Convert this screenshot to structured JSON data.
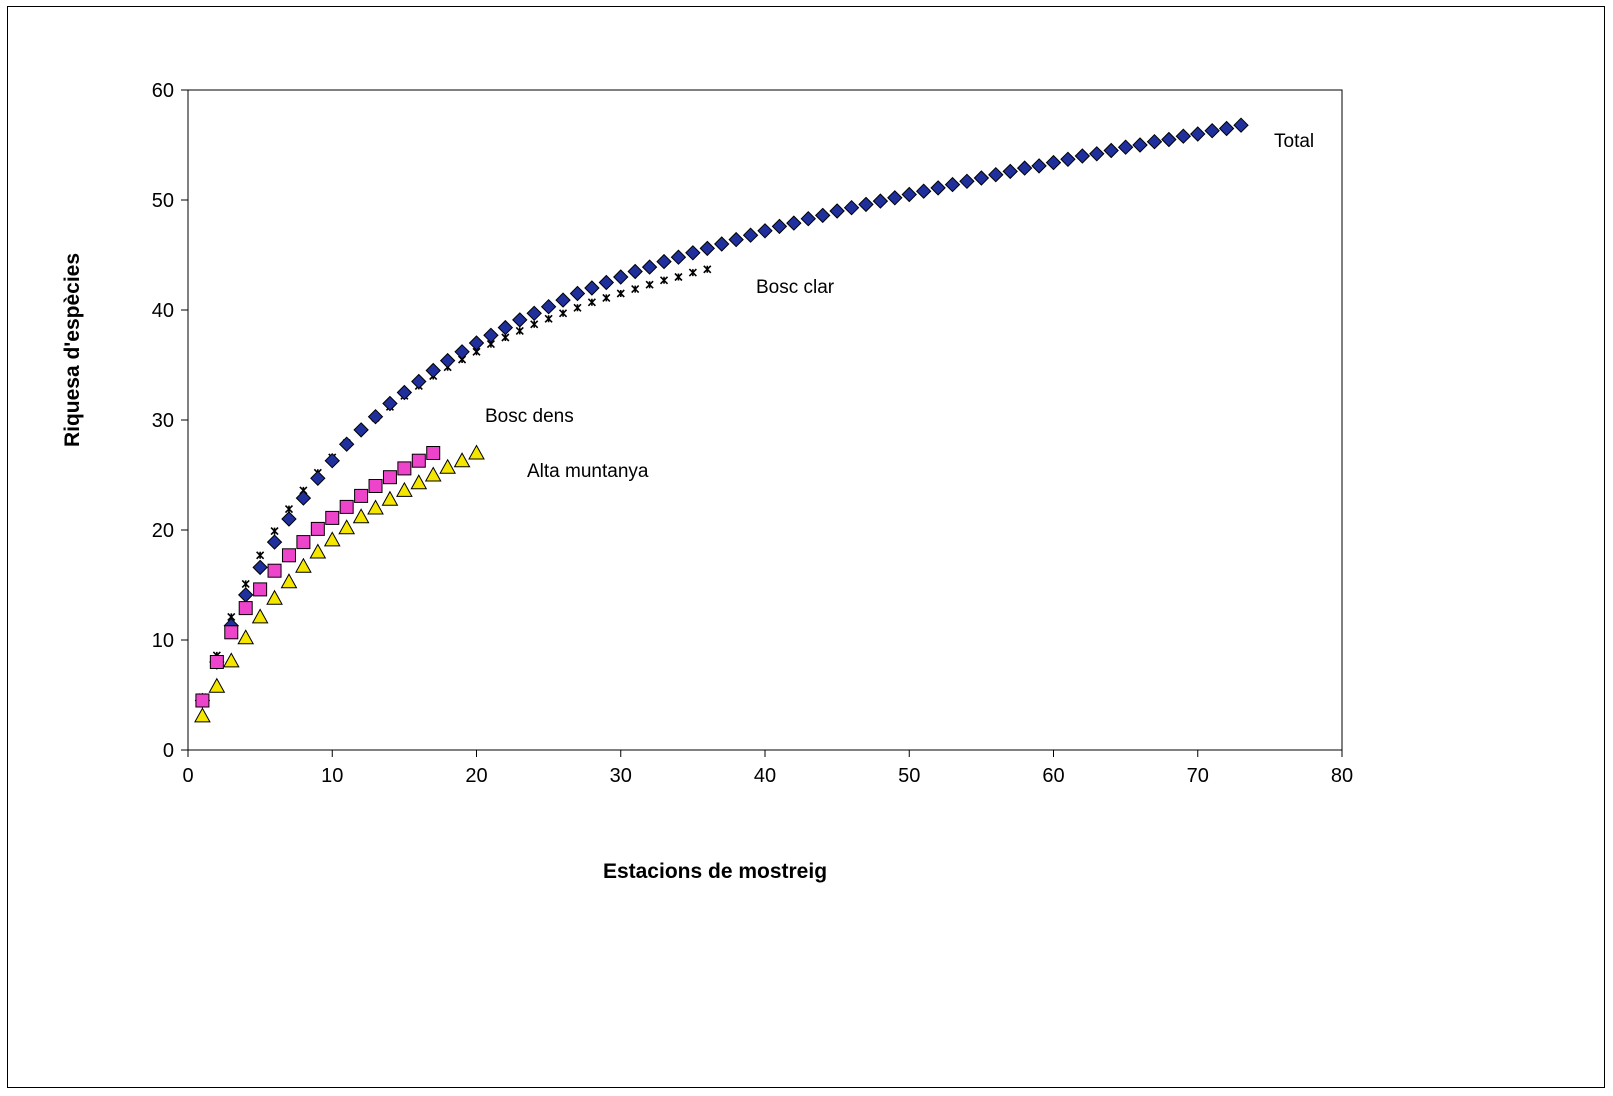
{
  "chart_data": {
    "type": "scatter",
    "title": "",
    "xlabel": "Estacions de mostreig",
    "ylabel": "Riquesa d'espècies",
    "xlim": [
      0,
      80
    ],
    "ylim": [
      0,
      60
    ],
    "xticks": [
      0,
      10,
      20,
      30,
      40,
      50,
      60,
      70,
      80
    ],
    "yticks": [
      0,
      10,
      20,
      30,
      40,
      50,
      60
    ],
    "grid": false,
    "legend": "none (series labelled directly on plot)",
    "series": [
      {
        "name": "Bosc clar",
        "marker": "star",
        "color": "#000000",
        "x": [
          1,
          2,
          3,
          4,
          5,
          6,
          7,
          8,
          9,
          10,
          11,
          12,
          13,
          14,
          15,
          16,
          17,
          18,
          19,
          20,
          21,
          22,
          23,
          24,
          25,
          26,
          27,
          28,
          29,
          30,
          31,
          32,
          33,
          34,
          35,
          36
        ],
        "y": [
          4.8,
          8.6,
          12.1,
          15.1,
          17.7,
          19.9,
          21.9,
          23.6,
          25.2,
          26.6,
          27.9,
          29.1,
          30.2,
          31.2,
          32.2,
          33.1,
          34.0,
          34.8,
          35.5,
          36.2,
          36.9,
          37.5,
          38.1,
          38.7,
          39.2,
          39.7,
          40.2,
          40.7,
          41.1,
          41.5,
          41.9,
          42.3,
          42.7,
          43.0,
          43.4,
          43.7
        ]
      },
      {
        "name": "Total",
        "marker": "diamond",
        "color": "#1f2f9b",
        "x": [
          1,
          2,
          3,
          4,
          5,
          6,
          7,
          8,
          9,
          10,
          11,
          12,
          13,
          14,
          15,
          16,
          17,
          18,
          19,
          20,
          21,
          22,
          23,
          24,
          25,
          26,
          27,
          28,
          29,
          30,
          31,
          32,
          33,
          34,
          35,
          36,
          37,
          38,
          39,
          40,
          41,
          42,
          43,
          44,
          45,
          46,
          47,
          48,
          49,
          50,
          51,
          52,
          53,
          54,
          55,
          56,
          57,
          58,
          59,
          60,
          61,
          62,
          63,
          64,
          65,
          66,
          67,
          68,
          69,
          70,
          71,
          72,
          73
        ],
        "y": [
          4.5,
          8.0,
          11.3,
          14.1,
          16.6,
          18.9,
          21.0,
          22.9,
          24.7,
          26.3,
          27.8,
          29.1,
          30.3,
          31.5,
          32.5,
          33.5,
          34.5,
          35.4,
          36.2,
          37.0,
          37.7,
          38.4,
          39.1,
          39.7,
          40.3,
          40.9,
          41.5,
          42.0,
          42.5,
          43.0,
          43.5,
          43.9,
          44.4,
          44.8,
          45.2,
          45.6,
          46.0,
          46.4,
          46.8,
          47.2,
          47.6,
          47.9,
          48.3,
          48.6,
          49.0,
          49.3,
          49.6,
          49.9,
          50.2,
          50.5,
          50.8,
          51.1,
          51.4,
          51.7,
          52.0,
          52.3,
          52.6,
          52.9,
          53.1,
          53.4,
          53.7,
          54.0,
          54.2,
          54.5,
          54.8,
          55.0,
          55.3,
          55.5,
          55.8,
          56.0,
          56.3,
          56.5,
          56.8
        ]
      },
      {
        "name": "Bosc dens",
        "marker": "square",
        "color": "#ee44cc",
        "x": [
          1,
          2,
          3,
          4,
          5,
          6,
          7,
          8,
          9,
          10,
          11,
          12,
          13,
          14,
          15,
          16,
          17
        ],
        "y": [
          4.5,
          8.0,
          10.7,
          12.9,
          14.6,
          16.3,
          17.7,
          18.9,
          20.1,
          21.1,
          22.1,
          23.1,
          24.0,
          24.8,
          25.6,
          26.3,
          27.0
        ]
      },
      {
        "name": "Alta muntanya",
        "marker": "triangle",
        "color": "#f5e600",
        "x": [
          1,
          2,
          3,
          4,
          5,
          6,
          7,
          8,
          9,
          10,
          11,
          12,
          13,
          14,
          15,
          16,
          17,
          18,
          19,
          20
        ],
        "y": [
          3.1,
          5.8,
          8.1,
          10.2,
          12.1,
          13.8,
          15.3,
          16.7,
          18.0,
          19.1,
          20.2,
          21.2,
          22.0,
          22.8,
          23.6,
          24.3,
          25.0,
          25.7,
          26.3,
          27.0
        ]
      }
    ]
  }
}
